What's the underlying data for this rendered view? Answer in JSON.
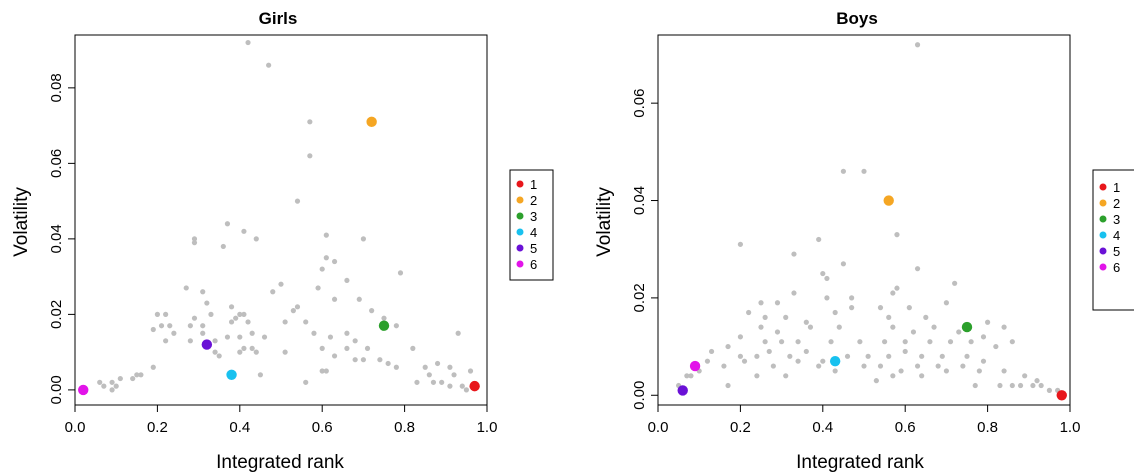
{
  "chart_data": [
    {
      "type": "scatter",
      "title": "Girls",
      "xlabel": "Integrated rank",
      "ylabel": "Volatility",
      "xlim": [
        0.0,
        1.0
      ],
      "ylim": [
        -0.004,
        0.094
      ],
      "xticks": [
        0.0,
        0.2,
        0.4,
        0.6,
        0.8,
        1.0
      ],
      "xtick_labels": [
        "0.0",
        "0.2",
        "0.4",
        "0.6",
        "0.8",
        "1.0"
      ],
      "yticks": [
        0.0,
        0.02,
        0.04,
        0.06,
        0.08
      ],
      "ytick_labels": [
        "0.00",
        "0.02",
        "0.04",
        "0.06",
        "0.08"
      ],
      "grid": false,
      "legend_position": "right",
      "background_color": "#bebebe",
      "background_points": [
        [
          0.42,
          0.092
        ],
        [
          0.47,
          0.086
        ],
        [
          0.57,
          0.071
        ],
        [
          0.57,
          0.062
        ],
        [
          0.54,
          0.05
        ],
        [
          0.29,
          0.039
        ],
        [
          0.29,
          0.04
        ],
        [
          0.37,
          0.044
        ],
        [
          0.41,
          0.042
        ],
        [
          0.44,
          0.04
        ],
        [
          0.36,
          0.038
        ],
        [
          0.61,
          0.041
        ],
        [
          0.7,
          0.04
        ],
        [
          0.61,
          0.035
        ],
        [
          0.63,
          0.034
        ],
        [
          0.6,
          0.032
        ],
        [
          0.79,
          0.031
        ],
        [
          0.66,
          0.029
        ],
        [
          0.5,
          0.028
        ],
        [
          0.59,
          0.027
        ],
        [
          0.27,
          0.027
        ],
        [
          0.48,
          0.026
        ],
        [
          0.63,
          0.024
        ],
        [
          0.69,
          0.024
        ],
        [
          0.31,
          0.026
        ],
        [
          0.32,
          0.023
        ],
        [
          0.38,
          0.022
        ],
        [
          0.54,
          0.022
        ],
        [
          0.53,
          0.021
        ],
        [
          0.72,
          0.021
        ],
        [
          0.2,
          0.02
        ],
        [
          0.22,
          0.02
        ],
        [
          0.29,
          0.019
        ],
        [
          0.33,
          0.02
        ],
        [
          0.39,
          0.019
        ],
        [
          0.4,
          0.02
        ],
        [
          0.41,
          0.02
        ],
        [
          0.75,
          0.019
        ],
        [
          0.21,
          0.017
        ],
        [
          0.23,
          0.017
        ],
        [
          0.28,
          0.017
        ],
        [
          0.31,
          0.017
        ],
        [
          0.38,
          0.018
        ],
        [
          0.42,
          0.018
        ],
        [
          0.51,
          0.018
        ],
        [
          0.56,
          0.018
        ],
        [
          0.78,
          0.017
        ],
        [
          0.19,
          0.016
        ],
        [
          0.24,
          0.015
        ],
        [
          0.31,
          0.015
        ],
        [
          0.43,
          0.015
        ],
        [
          0.58,
          0.015
        ],
        [
          0.66,
          0.015
        ],
        [
          0.22,
          0.013
        ],
        [
          0.28,
          0.013
        ],
        [
          0.34,
          0.013
        ],
        [
          0.37,
          0.014
        ],
        [
          0.4,
          0.014
        ],
        [
          0.46,
          0.014
        ],
        [
          0.62,
          0.014
        ],
        [
          0.68,
          0.013
        ],
        [
          0.41,
          0.011
        ],
        [
          0.43,
          0.011
        ],
        [
          0.51,
          0.01
        ],
        [
          0.6,
          0.011
        ],
        [
          0.66,
          0.011
        ],
        [
          0.71,
          0.011
        ],
        [
          0.82,
          0.011
        ],
        [
          0.34,
          0.01
        ],
        [
          0.35,
          0.009
        ],
        [
          0.4,
          0.01
        ],
        [
          0.44,
          0.01
        ],
        [
          0.63,
          0.009
        ],
        [
          0.68,
          0.008
        ],
        [
          0.7,
          0.008
        ],
        [
          0.74,
          0.008
        ],
        [
          0.76,
          0.007
        ],
        [
          0.78,
          0.006
        ],
        [
          0.85,
          0.006
        ],
        [
          0.88,
          0.007
        ],
        [
          0.91,
          0.006
        ],
        [
          0.93,
          0.015
        ],
        [
          0.19,
          0.006
        ],
        [
          0.16,
          0.004
        ],
        [
          0.14,
          0.003
        ],
        [
          0.15,
          0.004
        ],
        [
          0.11,
          0.003
        ],
        [
          0.09,
          0.002
        ],
        [
          0.1,
          0.001
        ],
        [
          0.07,
          0.001
        ],
        [
          0.06,
          0.002
        ],
        [
          0.09,
          0.0
        ],
        [
          0.45,
          0.004
        ],
        [
          0.56,
          0.002
        ],
        [
          0.6,
          0.005
        ],
        [
          0.61,
          0.005
        ],
        [
          0.83,
          0.002
        ],
        [
          0.86,
          0.004
        ],
        [
          0.87,
          0.002
        ],
        [
          0.89,
          0.002
        ],
        [
          0.91,
          0.001
        ],
        [
          0.92,
          0.004
        ],
        [
          0.94,
          0.001
        ],
        [
          0.95,
          0.0
        ],
        [
          0.96,
          0.005
        ]
      ],
      "highlighted": [
        {
          "label": "1",
          "x": 0.97,
          "y": 0.001,
          "color": "#e8161b"
        },
        {
          "label": "2",
          "x": 0.72,
          "y": 0.071,
          "color": "#f5a623"
        },
        {
          "label": "3",
          "x": 0.75,
          "y": 0.017,
          "color": "#2ca02c"
        },
        {
          "label": "4",
          "x": 0.38,
          "y": 0.004,
          "color": "#18c1ef"
        },
        {
          "label": "5",
          "x": 0.32,
          "y": 0.012,
          "color": "#6a11d6"
        },
        {
          "label": "6",
          "x": 0.02,
          "y": 0.0,
          "color": "#e214e9"
        }
      ],
      "legend": [
        "1",
        "2",
        "3",
        "4",
        "5",
        "6"
      ]
    },
    {
      "type": "scatter",
      "title": "Boys",
      "xlabel": "Integrated rank",
      "ylabel": "Volatility",
      "xlim": [
        0.0,
        1.0
      ],
      "ylim": [
        -0.002,
        0.074
      ],
      "xticks": [
        0.0,
        0.2,
        0.4,
        0.6,
        0.8,
        1.0
      ],
      "xtick_labels": [
        "0.0",
        "0.2",
        "0.4",
        "0.6",
        "0.8",
        "1.0"
      ],
      "yticks": [
        0.0,
        0.02,
        0.04,
        0.06
      ],
      "ytick_labels": [
        "0.00",
        "0.02",
        "0.04",
        "0.06"
      ],
      "grid": false,
      "legend_position": "right",
      "background_color": "#bebebe",
      "background_points": [
        [
          0.63,
          0.072
        ],
        [
          0.45,
          0.046
        ],
        [
          0.5,
          0.046
        ],
        [
          0.58,
          0.033
        ],
        [
          0.2,
          0.031
        ],
        [
          0.39,
          0.032
        ],
        [
          0.33,
          0.029
        ],
        [
          0.45,
          0.027
        ],
        [
          0.63,
          0.026
        ],
        [
          0.4,
          0.025
        ],
        [
          0.41,
          0.024
        ],
        [
          0.47,
          0.02
        ],
        [
          0.57,
          0.021
        ],
        [
          0.58,
          0.022
        ],
        [
          0.72,
          0.023
        ],
        [
          0.25,
          0.019
        ],
        [
          0.29,
          0.019
        ],
        [
          0.33,
          0.021
        ],
        [
          0.41,
          0.02
        ],
        [
          0.54,
          0.018
        ],
        [
          0.61,
          0.018
        ],
        [
          0.7,
          0.019
        ],
        [
          0.22,
          0.017
        ],
        [
          0.26,
          0.016
        ],
        [
          0.31,
          0.016
        ],
        [
          0.36,
          0.015
        ],
        [
          0.43,
          0.017
        ],
        [
          0.47,
          0.018
        ],
        [
          0.56,
          0.016
        ],
        [
          0.65,
          0.016
        ],
        [
          0.8,
          0.015
        ],
        [
          0.84,
          0.014
        ],
        [
          0.25,
          0.014
        ],
        [
          0.29,
          0.013
        ],
        [
          0.37,
          0.014
        ],
        [
          0.44,
          0.014
        ],
        [
          0.57,
          0.014
        ],
        [
          0.62,
          0.013
        ],
        [
          0.67,
          0.014
        ],
        [
          0.73,
          0.013
        ],
        [
          0.79,
          0.012
        ],
        [
          0.86,
          0.011
        ],
        [
          0.2,
          0.012
        ],
        [
          0.26,
          0.011
        ],
        [
          0.3,
          0.011
        ],
        [
          0.34,
          0.011
        ],
        [
          0.42,
          0.011
        ],
        [
          0.49,
          0.011
        ],
        [
          0.55,
          0.011
        ],
        [
          0.6,
          0.011
        ],
        [
          0.66,
          0.011
        ],
        [
          0.71,
          0.011
        ],
        [
          0.76,
          0.011
        ],
        [
          0.82,
          0.01
        ],
        [
          0.13,
          0.009
        ],
        [
          0.17,
          0.01
        ],
        [
          0.2,
          0.008
        ],
        [
          0.24,
          0.008
        ],
        [
          0.27,
          0.009
        ],
        [
          0.32,
          0.008
        ],
        [
          0.36,
          0.009
        ],
        [
          0.4,
          0.007
        ],
        [
          0.46,
          0.008
        ],
        [
          0.51,
          0.008
        ],
        [
          0.56,
          0.008
        ],
        [
          0.6,
          0.009
        ],
        [
          0.64,
          0.008
        ],
        [
          0.69,
          0.008
        ],
        [
          0.75,
          0.008
        ],
        [
          0.79,
          0.007
        ],
        [
          0.12,
          0.007
        ],
        [
          0.16,
          0.006
        ],
        [
          0.21,
          0.007
        ],
        [
          0.28,
          0.006
        ],
        [
          0.34,
          0.007
        ],
        [
          0.39,
          0.006
        ],
        [
          0.43,
          0.005
        ],
        [
          0.5,
          0.006
        ],
        [
          0.54,
          0.006
        ],
        [
          0.59,
          0.005
        ],
        [
          0.63,
          0.006
        ],
        [
          0.68,
          0.006
        ],
        [
          0.74,
          0.006
        ],
        [
          0.78,
          0.005
        ],
        [
          0.84,
          0.005
        ],
        [
          0.89,
          0.004
        ],
        [
          0.92,
          0.003
        ],
        [
          0.1,
          0.005
        ],
        [
          0.08,
          0.004
        ],
        [
          0.07,
          0.004
        ],
        [
          0.24,
          0.004
        ],
        [
          0.31,
          0.004
        ],
        [
          0.53,
          0.003
        ],
        [
          0.57,
          0.004
        ],
        [
          0.64,
          0.004
        ],
        [
          0.7,
          0.005
        ],
        [
          0.77,
          0.002
        ],
        [
          0.83,
          0.002
        ],
        [
          0.86,
          0.002
        ],
        [
          0.88,
          0.002
        ],
        [
          0.91,
          0.002
        ],
        [
          0.93,
          0.002
        ],
        [
          0.95,
          0.001
        ],
        [
          0.97,
          0.001
        ],
        [
          0.05,
          0.002
        ],
        [
          0.06,
          0.001
        ],
        [
          0.17,
          0.002
        ]
      ],
      "highlighted": [
        {
          "label": "1",
          "x": 0.98,
          "y": 0.0,
          "color": "#e8161b"
        },
        {
          "label": "2",
          "x": 0.56,
          "y": 0.04,
          "color": "#f5a623"
        },
        {
          "label": "3",
          "x": 0.75,
          "y": 0.014,
          "color": "#2ca02c"
        },
        {
          "label": "4",
          "x": 0.43,
          "y": 0.007,
          "color": "#18c1ef"
        },
        {
          "label": "5",
          "x": 0.06,
          "y": 0.001,
          "color": "#6a11d6"
        },
        {
          "label": "6",
          "x": 0.09,
          "y": 0.006,
          "color": "#e214e9"
        }
      ],
      "legend": [
        "1",
        "2",
        "3",
        "4",
        "5",
        "6"
      ]
    }
  ]
}
